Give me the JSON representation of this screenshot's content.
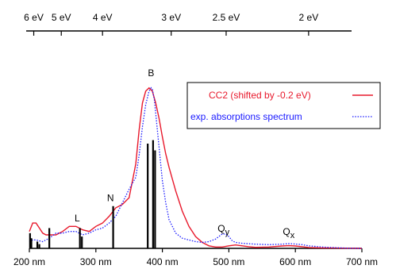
{
  "chart_data": {
    "type": "line",
    "xlim": [
      200,
      700
    ],
    "ylim": [
      0,
      1.0
    ],
    "bottom_axis": {
      "ticks": [
        200,
        300,
        400,
        500,
        600,
        700
      ],
      "tick_labels": [
        "200 nm",
        "300 nm",
        "400 nm",
        "500 nm",
        "600 nm",
        "700 nm"
      ]
    },
    "top_axis": {
      "ticks_nm": [
        206.6,
        248.0,
        310.0,
        413.3,
        495.9,
        619.9
      ],
      "tick_labels": [
        "6 eV",
        "5 eV",
        "4 eV",
        "3 eV",
        "2.5 eV",
        "2 eV"
      ]
    },
    "series": [
      {
        "name": "CC2 (shifted by -0.2 eV)",
        "color": "#e8192c",
        "style": "solid",
        "x": [
          200,
          205,
          210,
          215,
          220,
          225,
          230,
          240,
          250,
          260,
          270,
          275,
          280,
          290,
          300,
          310,
          320,
          330,
          340,
          350,
          360,
          365,
          370,
          375,
          380,
          385,
          390,
          395,
          400,
          405,
          410,
          420,
          430,
          440,
          450,
          460,
          470,
          480,
          490,
          500,
          510,
          520,
          530,
          540,
          560,
          580,
          590,
          600,
          610,
          620,
          640,
          660,
          680,
          700
        ],
        "y": [
          0.1,
          0.15,
          0.15,
          0.12,
          0.09,
          0.08,
          0.08,
          0.08,
          0.1,
          0.13,
          0.13,
          0.12,
          0.11,
          0.1,
          0.13,
          0.15,
          0.19,
          0.24,
          0.26,
          0.3,
          0.5,
          0.7,
          0.86,
          0.93,
          0.95,
          0.93,
          0.86,
          0.77,
          0.66,
          0.56,
          0.48,
          0.34,
          0.22,
          0.13,
          0.07,
          0.035,
          0.015,
          0.008,
          0.008,
          0.015,
          0.02,
          0.015,
          0.01,
          0.006,
          0.008,
          0.014,
          0.016,
          0.014,
          0.01,
          0.005,
          0.003,
          0.002,
          0.001,
          0.0
        ]
      },
      {
        "name": "exp. absorptions spectrum",
        "color": "#1a1aff",
        "style": "dotted",
        "x": [
          200,
          205,
          210,
          220,
          230,
          240,
          250,
          260,
          270,
          280,
          290,
          300,
          310,
          320,
          330,
          340,
          350,
          360,
          365,
          370,
          375,
          380,
          383,
          385,
          388,
          390,
          395,
          400,
          405,
          410,
          420,
          430,
          440,
          450,
          460,
          470,
          480,
          485,
          490,
          495,
          500,
          505,
          510,
          520,
          540,
          560,
          580,
          590,
          600,
          610,
          620,
          640,
          660,
          680,
          700
        ],
        "y": [
          0.04,
          0.05,
          0.05,
          0.04,
          0.06,
          0.09,
          0.09,
          0.1,
          0.1,
          0.08,
          0.09,
          0.11,
          0.12,
          0.15,
          0.19,
          0.27,
          0.35,
          0.42,
          0.55,
          0.72,
          0.85,
          0.93,
          0.95,
          0.94,
          0.88,
          0.8,
          0.6,
          0.4,
          0.27,
          0.17,
          0.09,
          0.06,
          0.05,
          0.04,
          0.035,
          0.04,
          0.055,
          0.07,
          0.085,
          0.085,
          0.07,
          0.045,
          0.035,
          0.03,
          0.025,
          0.022,
          0.025,
          0.028,
          0.026,
          0.022,
          0.015,
          0.008,
          0.004,
          0.001,
          0.0
        ]
      }
    ],
    "sticks": {
      "x": [
        201,
        203,
        212,
        215,
        230,
        276,
        279,
        326,
        378,
        386,
        389
      ],
      "y": [
        0.09,
        0.06,
        0.04,
        0.025,
        0.12,
        0.12,
        0.07,
        0.25,
        0.62,
        0.64,
        0.58
      ],
      "color": "#000000"
    },
    "annotations": [
      {
        "text": "B",
        "x": 383,
        "y": 1.0
      },
      {
        "text": "N",
        "x": 322,
        "y": 0.26
      },
      {
        "text": "L",
        "x": 272,
        "y": 0.14
      },
      {
        "text": "Q",
        "sub": "y",
        "x": 492,
        "y": 0.08
      },
      {
        "text": "Q",
        "sub": "x",
        "x": 590,
        "y": 0.06
      }
    ],
    "legend_position": "top-right"
  }
}
